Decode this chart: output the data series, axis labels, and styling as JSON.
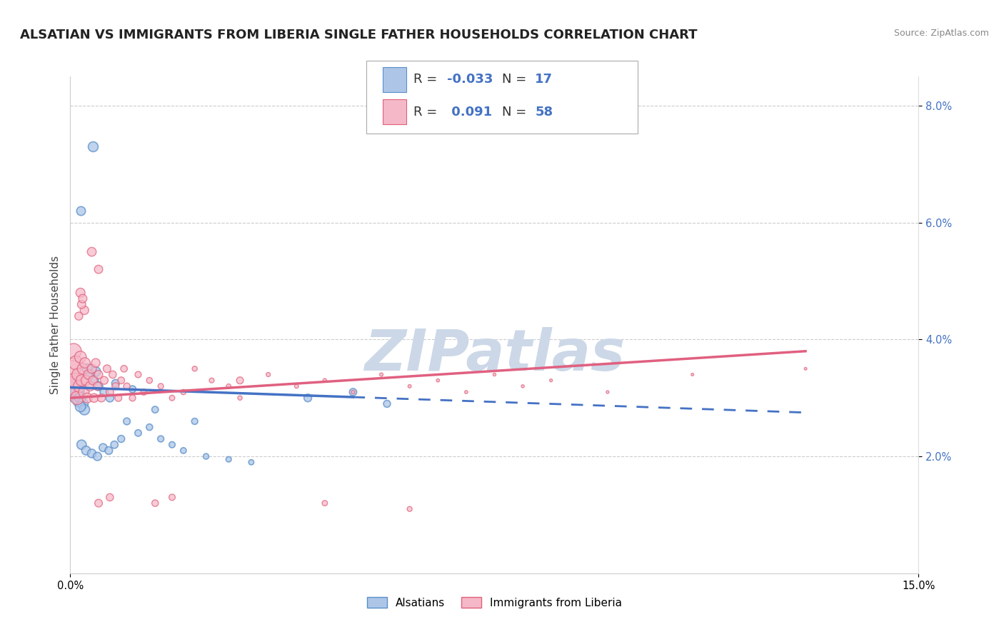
{
  "title": "ALSATIAN VS IMMIGRANTS FROM LIBERIA SINGLE FATHER HOUSEHOLDS CORRELATION CHART",
  "source": "Source: ZipAtlas.com",
  "ylabel": "Single Father Households",
  "xlim": [
    0.0,
    15.0
  ],
  "ylim": [
    0.0,
    8.5
  ],
  "yticks": [
    2.0,
    4.0,
    6.0,
    8.0
  ],
  "ytick_labels": [
    "2.0%",
    "4.0%",
    "6.0%",
    "8.0%"
  ],
  "legend_label1": "Alsatians",
  "legend_label2": "Immigrants from Liberia",
  "color_blue_fill": "#adc6e8",
  "color_pink_fill": "#f5b8c8",
  "color_blue_edge": "#5b8fc9",
  "color_pink_edge": "#e0607a",
  "color_blue_line": "#4472c4",
  "color_pink_line": "#e06080",
  "watermark": "ZIPatlas",
  "alsatian_x": [
    0.05,
    0.1,
    0.08,
    0.06,
    0.12,
    0.15,
    0.18,
    0.22,
    0.25,
    0.18,
    0.3,
    0.35,
    0.42,
    0.5,
    0.6,
    0.7,
    0.45,
    0.8,
    1.1,
    1.5,
    2.2,
    4.2,
    5.0,
    5.6,
    0.2,
    0.28,
    0.38,
    0.48,
    0.58,
    0.68,
    0.78,
    0.9,
    1.0,
    1.2,
    1.4,
    1.6,
    1.8,
    2.0,
    2.4,
    2.8,
    3.2
  ],
  "alsatian_y": [
    3.15,
    3.1,
    3.2,
    3.05,
    3.12,
    2.95,
    3.0,
    2.9,
    2.8,
    2.85,
    3.5,
    3.4,
    3.3,
    3.2,
    3.1,
    3.0,
    3.45,
    3.25,
    3.15,
    2.8,
    2.6,
    3.0,
    3.1,
    2.9,
    2.2,
    2.1,
    2.05,
    2.0,
    2.15,
    2.1,
    2.2,
    2.3,
    2.6,
    2.4,
    2.5,
    2.3,
    2.2,
    2.1,
    2.0,
    1.95,
    1.9
  ],
  "alsatian_size": [
    350,
    280,
    200,
    180,
    160,
    140,
    130,
    120,
    110,
    105,
    100,
    90,
    80,
    75,
    70,
    65,
    95,
    60,
    50,
    45,
    40,
    60,
    55,
    50,
    90,
    80,
    75,
    70,
    65,
    60,
    55,
    50,
    48,
    45,
    42,
    40,
    38,
    35,
    32,
    30,
    28
  ],
  "alsatian_outlier_x": [
    0.4
  ],
  "alsatian_outlier_y": [
    7.3
  ],
  "alsatian_outlier_s": [
    100
  ],
  "alsatian_out2_x": [
    0.18
  ],
  "alsatian_out2_y": [
    6.2
  ],
  "alsatian_out2_s": [
    80
  ],
  "liberia_x": [
    0.02,
    0.04,
    0.06,
    0.08,
    0.1,
    0.12,
    0.14,
    0.16,
    0.18,
    0.2,
    0.22,
    0.24,
    0.26,
    0.28,
    0.3,
    0.32,
    0.35,
    0.38,
    0.4,
    0.42,
    0.45,
    0.48,
    0.5,
    0.55,
    0.6,
    0.65,
    0.7,
    0.75,
    0.8,
    0.85,
    0.9,
    0.95,
    1.0,
    1.1,
    1.2,
    1.3,
    1.4,
    1.6,
    1.8,
    2.0,
    2.2,
    2.5,
    2.8,
    3.0,
    3.5,
    4.0,
    4.5,
    5.0,
    5.5,
    6.0,
    6.5,
    7.0,
    7.5,
    8.0,
    8.5,
    9.5,
    11.0,
    13.0
  ],
  "liberia_y": [
    3.2,
    3.5,
    3.8,
    3.3,
    3.6,
    3.0,
    3.4,
    3.2,
    3.7,
    3.3,
    3.5,
    3.1,
    3.6,
    3.3,
    3.0,
    3.4,
    3.2,
    3.5,
    3.3,
    3.0,
    3.6,
    3.2,
    3.4,
    3.0,
    3.3,
    3.5,
    3.1,
    3.4,
    3.2,
    3.0,
    3.3,
    3.5,
    3.2,
    3.0,
    3.4,
    3.1,
    3.3,
    3.2,
    3.0,
    3.1,
    3.5,
    3.3,
    3.2,
    3.0,
    3.4,
    3.2,
    3.3,
    3.1,
    3.4,
    3.2,
    3.3,
    3.1,
    3.4,
    3.2,
    3.3,
    3.1,
    3.4,
    3.5
  ],
  "liberia_size": [
    320,
    280,
    240,
    220,
    200,
    180,
    160,
    150,
    140,
    130,
    120,
    115,
    110,
    105,
    100,
    95,
    90,
    85,
    80,
    78,
    75,
    72,
    70,
    65,
    62,
    60,
    58,
    55,
    52,
    50,
    48,
    46,
    44,
    42,
    40,
    38,
    36,
    32,
    30,
    28,
    26,
    24,
    22,
    20,
    18,
    16,
    14,
    13,
    12,
    11,
    10,
    10,
    9,
    9,
    8,
    8,
    7,
    7
  ],
  "liberia_outlier_x": [
    0.38,
    0.5,
    0.18,
    0.25,
    0.2,
    0.15,
    0.22,
    3.0
  ],
  "liberia_outlier_y": [
    5.5,
    5.2,
    4.8,
    4.5,
    4.6,
    4.4,
    4.7,
    3.3
  ],
  "liberia_outlier_s": [
    80,
    70,
    85,
    75,
    70,
    65,
    72,
    50
  ],
  "liberia_low_x": [
    0.5,
    0.7,
    1.5,
    1.8,
    4.5,
    6.0
  ],
  "liberia_low_y": [
    1.2,
    1.3,
    1.2,
    1.3,
    1.2,
    1.1
  ],
  "liberia_low_s": [
    60,
    55,
    45,
    40,
    30,
    25
  ],
  "trend_blue_start_y": 3.18,
  "trend_blue_end_y": 2.75,
  "trend_blue_x_solid_end": 5.0,
  "trend_pink_start_y": 3.0,
  "trend_pink_end_y": 3.8,
  "grid_color": "#cccccc",
  "bg_color": "#ffffff",
  "watermark_color": "#ccd8e8",
  "title_fontsize": 13,
  "axis_label_fontsize": 11,
  "tick_fontsize": 10.5,
  "legend_fontsize": 13
}
